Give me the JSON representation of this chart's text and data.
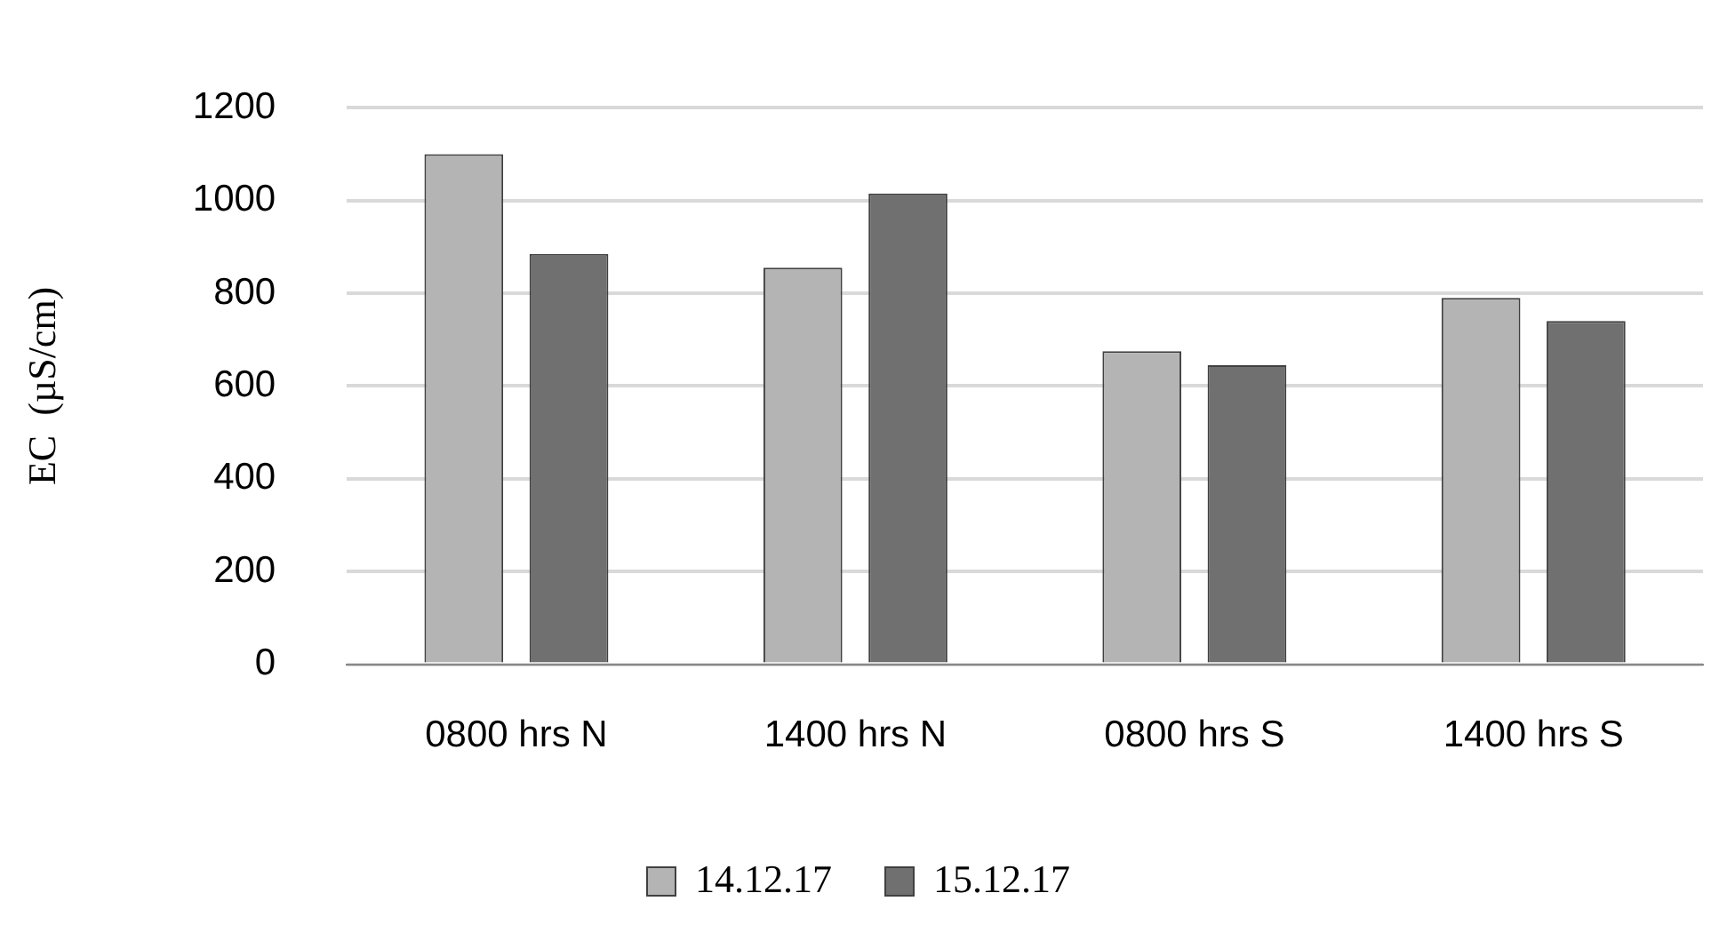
{
  "chart_data": {
    "type": "bar",
    "ylabel": "EC  (µS/cm)",
    "categories": [
      "0800 hrs N",
      "1400 hrs N",
      "0800 hrs S",
      "1400 hrs S"
    ],
    "series": [
      {
        "name": "14.12.17",
        "color": "#b4b4b4",
        "values": [
          1100,
          855,
          675,
          790
        ]
      },
      {
        "name": "15.12.17",
        "color": "#707070",
        "values": [
          885,
          1015,
          645,
          740
        ]
      }
    ],
    "ylim": [
      0,
      1200
    ],
    "yticks": [
      0,
      200,
      400,
      600,
      800,
      1000,
      1200
    ],
    "grid": "y",
    "legend": "bottom"
  }
}
